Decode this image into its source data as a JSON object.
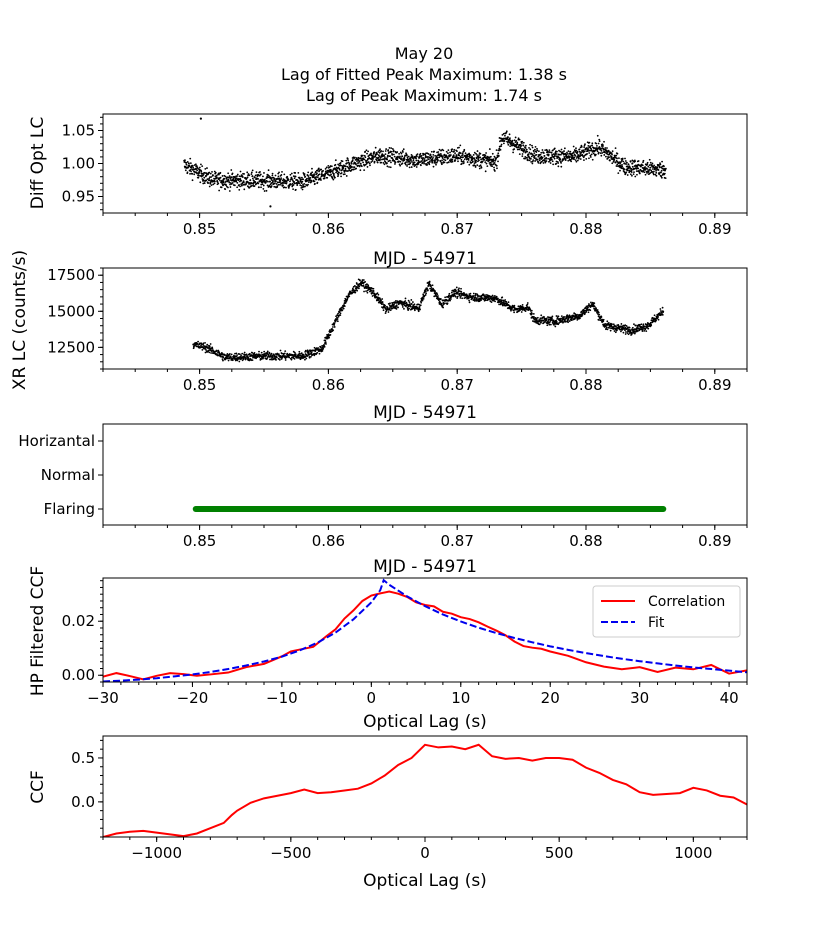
{
  "title_lines": [
    "May 20",
    "Lag of Fitted Peak Maximum: 1.38 s",
    "Lag of Peak Maximum: 1.74 s"
  ],
  "colors": {
    "optical": "#000000",
    "xray": "#000000",
    "state": "#008000",
    "correlation": "#ff0000",
    "fit": "#0000ee",
    "ccf": "#ff0000"
  },
  "chart_data": [
    {
      "id": "opt",
      "type": "scatter",
      "ylabel": "Diff Opt LC",
      "xlabel": "MJD - 54971",
      "xlim": [
        0.8425,
        0.8925
      ],
      "ylim": [
        0.925,
        1.075
      ],
      "xticks": [
        0.85,
        0.86,
        0.87,
        0.88,
        0.89
      ],
      "xtick_labels": [
        "0.85",
        "0.86",
        "0.87",
        "0.88",
        "0.89"
      ],
      "yticks": [
        0.95,
        1.0,
        1.05
      ],
      "ytick_labels": [
        "0.95",
        "1.00",
        "1.05"
      ],
      "x_range": [
        0.8488,
        0.8862
      ],
      "trend": [
        [
          0.8488,
          0.998
        ],
        [
          0.851,
          0.975
        ],
        [
          0.855,
          0.974
        ],
        [
          0.858,
          0.972
        ],
        [
          0.86,
          0.985
        ],
        [
          0.862,
          1.0
        ],
        [
          0.864,
          1.012
        ],
        [
          0.867,
          1.005
        ],
        [
          0.87,
          1.012
        ],
        [
          0.873,
          1.002
        ],
        [
          0.8735,
          1.04
        ],
        [
          0.876,
          1.012
        ],
        [
          0.879,
          1.01
        ],
        [
          0.881,
          1.025
        ],
        [
          0.883,
          0.995
        ],
        [
          0.8862,
          0.99
        ]
      ],
      "noise": 0.012,
      "outliers": [
        [
          0.8501,
          1.068
        ],
        [
          0.8555,
          0.935
        ]
      ]
    },
    {
      "id": "xr",
      "type": "scatter",
      "ylabel": "XR LC (counts/s)",
      "xlabel": "MJD - 54971",
      "xlim": [
        0.8425,
        0.8925
      ],
      "ylim": [
        11000,
        18000
      ],
      "xticks": [
        0.85,
        0.86,
        0.87,
        0.88,
        0.89
      ],
      "xtick_labels": [
        "0.85",
        "0.86",
        "0.87",
        "0.88",
        "0.89"
      ],
      "yticks": [
        12500,
        15000,
        17500
      ],
      "ytick_labels": [
        "12500",
        "15000",
        "17500"
      ],
      "x_range": [
        0.8495,
        0.886
      ],
      "trend": [
        [
          0.8495,
          12700
        ],
        [
          0.8505,
          12500
        ],
        [
          0.852,
          11800
        ],
        [
          0.855,
          11900
        ],
        [
          0.858,
          11900
        ],
        [
          0.8595,
          12400
        ],
        [
          0.8605,
          14200
        ],
        [
          0.8615,
          16000
        ],
        [
          0.8625,
          17000
        ],
        [
          0.8635,
          16300
        ],
        [
          0.8645,
          15100
        ],
        [
          0.8655,
          15600
        ],
        [
          0.867,
          15200
        ],
        [
          0.8678,
          16900
        ],
        [
          0.8688,
          15500
        ],
        [
          0.8698,
          16300
        ],
        [
          0.871,
          16000
        ],
        [
          0.873,
          15900
        ],
        [
          0.8745,
          15100
        ],
        [
          0.8755,
          15300
        ],
        [
          0.876,
          14400
        ],
        [
          0.8775,
          14300
        ],
        [
          0.8795,
          14700
        ],
        [
          0.8805,
          15500
        ],
        [
          0.8815,
          14000
        ],
        [
          0.8835,
          13700
        ],
        [
          0.8848,
          14000
        ],
        [
          0.886,
          15000
        ]
      ],
      "noise": 280
    },
    {
      "id": "state",
      "type": "line",
      "xlabel": "MJD - 54971",
      "xlim": [
        0.8425,
        0.8925
      ],
      "categories": [
        "Flaring",
        "Normal",
        "Horizantal"
      ],
      "xticks": [
        0.85,
        0.86,
        0.87,
        0.88,
        0.89
      ],
      "xtick_labels": [
        "0.85",
        "0.86",
        "0.87",
        "0.88",
        "0.89"
      ],
      "segment": {
        "x0": 0.8497,
        "x1": 0.886,
        "state": "Flaring"
      }
    },
    {
      "id": "hpccf",
      "type": "line",
      "ylabel": "HP Filtered CCF",
      "xlabel": "Optical Lag (s)",
      "xlim": [
        -30,
        42
      ],
      "ylim": [
        -0.0025,
        0.036
      ],
      "xticks": [
        -30,
        -20,
        -10,
        0,
        10,
        20,
        30,
        40
      ],
      "xtick_labels": [
        "−30",
        "−20",
        "−10",
        "0",
        "10",
        "20",
        "30",
        "40"
      ],
      "yticks": [
        0.0,
        0.02
      ],
      "ytick_labels": [
        "0.00",
        "0.02"
      ],
      "legend": [
        "Correlation",
        "Fit"
      ],
      "legend_position": "top-right",
      "series": [
        {
          "name": "Correlation",
          "x": [
            -30,
            -28.5,
            -27,
            -25.5,
            -24,
            -22.5,
            -21,
            -19.5,
            -18,
            -16,
            -14,
            -12,
            -10,
            -9,
            -8,
            -6.5,
            -5,
            -4,
            -3,
            -2,
            -1,
            0,
            1,
            2,
            3,
            4,
            5,
            6,
            7,
            8,
            9,
            10,
            11,
            12,
            13,
            14,
            15,
            16,
            17,
            18,
            19,
            20,
            22,
            24,
            26,
            28,
            30,
            32,
            34,
            36,
            38,
            40,
            42
          ],
          "y": [
            -0.0005,
            0.0008,
            -0.0003,
            -0.0015,
            -0.0002,
            0.0008,
            0.0004,
            -0.0002,
            0.0003,
            0.001,
            0.003,
            0.0042,
            0.007,
            0.0088,
            0.0095,
            0.0105,
            0.0145,
            0.017,
            0.021,
            0.024,
            0.0275,
            0.0295,
            0.0303,
            0.031,
            0.0302,
            0.029,
            0.027,
            0.026,
            0.0255,
            0.0235,
            0.0228,
            0.0215,
            0.0208,
            0.0196,
            0.018,
            0.0165,
            0.0148,
            0.0125,
            0.0108,
            0.0102,
            0.0098,
            0.0088,
            0.0072,
            0.0048,
            0.0032,
            0.0022,
            0.003,
            0.0012,
            0.0028,
            0.0022,
            0.0038,
            0.0006,
            0.0018
          ]
        },
        {
          "name": "Fit",
          "x": [
            -30,
            -28,
            -26,
            -24,
            -22,
            -20,
            -18,
            -16,
            -14,
            -12,
            -10,
            -8,
            -6,
            -4,
            -2,
            0,
            1,
            1.38,
            2,
            4,
            6,
            8,
            10,
            12,
            14,
            16,
            18,
            20,
            22,
            24,
            26,
            28,
            30,
            32,
            34,
            36,
            38,
            40,
            42
          ],
          "y": [
            -0.0023,
            -0.002,
            -0.0016,
            -0.0011,
            -0.0004,
            0.0003,
            0.0012,
            0.0023,
            0.0036,
            0.0051,
            0.0069,
            0.0092,
            0.0121,
            0.0158,
            0.0207,
            0.027,
            0.0315,
            0.0352,
            0.0335,
            0.0292,
            0.0256,
            0.0225,
            0.0199,
            0.0176,
            0.0156,
            0.0138,
            0.0122,
            0.0107,
            0.0094,
            0.0082,
            0.0071,
            0.0061,
            0.0052,
            0.0044,
            0.0036,
            0.0029,
            0.0023,
            0.0017,
            0.0011
          ]
        }
      ]
    },
    {
      "id": "ccf",
      "type": "line",
      "ylabel": "CCF",
      "xlabel": "Optical Lag (s)",
      "xlim": [
        -1200,
        1200
      ],
      "ylim": [
        -0.4,
        0.75
      ],
      "xticks": [
        -1000,
        -500,
        0,
        500,
        1000
      ],
      "xtick_labels": [
        "−1000",
        "−500",
        "0",
        "500",
        "1000"
      ],
      "yticks": [
        0.0,
        0.5
      ],
      "ytick_labels": [
        "0.0",
        "0.5"
      ],
      "series": [
        {
          "name": "CCF",
          "x": [
            -1200,
            -1150,
            -1100,
            -1050,
            -1000,
            -950,
            -900,
            -850,
            -800,
            -750,
            -720,
            -700,
            -650,
            -600,
            -550,
            -500,
            -450,
            -400,
            -350,
            -300,
            -250,
            -200,
            -150,
            -100,
            -50,
            0,
            50,
            100,
            150,
            200,
            250,
            300,
            350,
            400,
            450,
            500,
            550,
            600,
            650,
            700,
            750,
            800,
            850,
            900,
            950,
            1000,
            1050,
            1100,
            1150,
            1200
          ],
          "y": [
            -0.4,
            -0.36,
            -0.34,
            -0.33,
            -0.35,
            -0.37,
            -0.39,
            -0.36,
            -0.3,
            -0.24,
            -0.15,
            -0.1,
            -0.01,
            0.04,
            0.07,
            0.1,
            0.14,
            0.1,
            0.11,
            0.13,
            0.15,
            0.21,
            0.3,
            0.42,
            0.5,
            0.65,
            0.62,
            0.63,
            0.6,
            0.65,
            0.52,
            0.49,
            0.5,
            0.47,
            0.5,
            0.5,
            0.48,
            0.39,
            0.33,
            0.25,
            0.2,
            0.11,
            0.08,
            0.09,
            0.1,
            0.16,
            0.13,
            0.07,
            0.05,
            -0.03
          ]
        }
      ]
    }
  ]
}
